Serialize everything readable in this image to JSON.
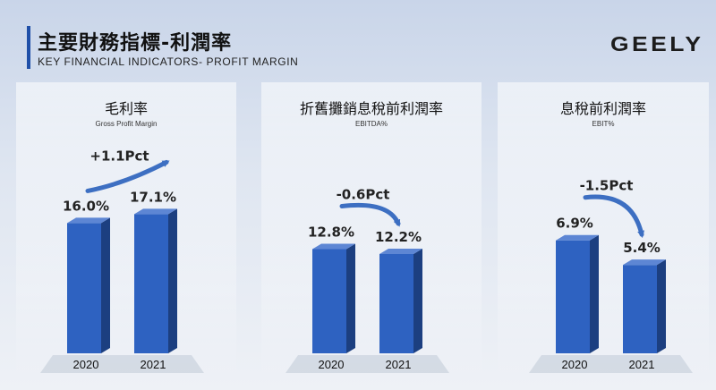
{
  "header": {
    "title_cn": "主要財務指標-利潤率",
    "title_en": "KEY FINANCIAL INDICATORS- PROFIT MARGIN",
    "logo": "GEELY"
  },
  "colors": {
    "bar_front": "#2e62c1",
    "bar_side": "#1c3f80",
    "bar_top": "#5d86d4",
    "arrow": "#3d6fc2",
    "accent": "#1f4fa8"
  },
  "chart_data": [
    {
      "type": "bar",
      "title": "毛利率",
      "subtitle": "Gross Profit Margin",
      "categories": [
        "2020",
        "2021"
      ],
      "values": [
        16.0,
        17.1
      ],
      "labels": [
        "16.0%",
        "17.1%"
      ],
      "change_label": "+1.1Pct",
      "direction": "up",
      "ylim": [
        0,
        20
      ]
    },
    {
      "type": "bar",
      "title": "折舊攤銷息稅前利潤率",
      "subtitle": "EBITDA%",
      "categories": [
        "2020",
        "2021"
      ],
      "values": [
        12.8,
        12.2
      ],
      "labels": [
        "12.8%",
        "12.2%"
      ],
      "change_label": "-0.6Pct",
      "direction": "down",
      "ylim": [
        0,
        20
      ]
    },
    {
      "type": "bar",
      "title": "息稅前利潤率",
      "subtitle": "EBIT%",
      "categories": [
        "2020",
        "2021"
      ],
      "values": [
        6.9,
        5.4
      ],
      "labels": [
        "6.9%",
        "5.4%"
      ],
      "change_label": "-1.5Pct",
      "direction": "down",
      "ylim": [
        0,
        10
      ]
    }
  ]
}
